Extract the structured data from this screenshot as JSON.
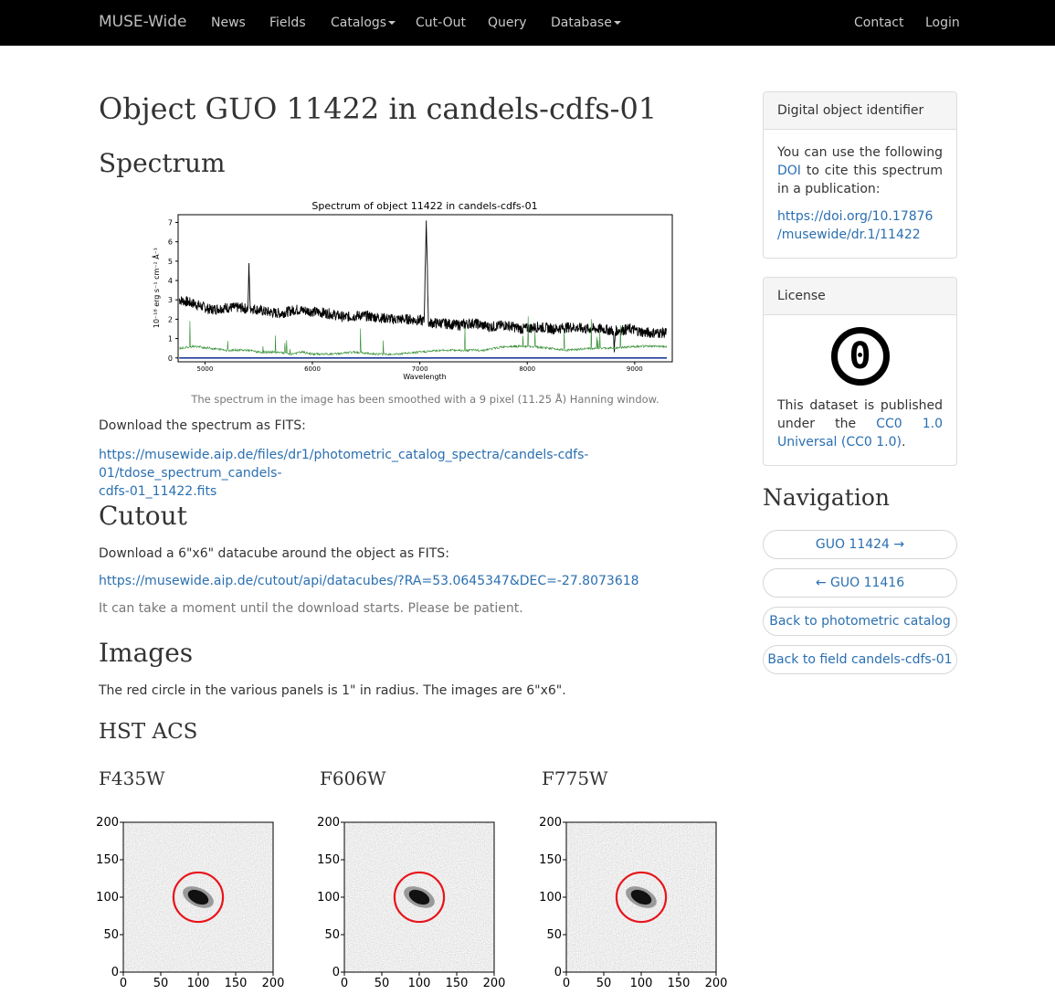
{
  "navbar": {
    "brand": "MUSE-Wide",
    "items": [
      "News",
      "Fields",
      "Catalogs",
      "Cut-Out",
      "Query",
      "Database"
    ],
    "right_items": [
      "Contact",
      "Login"
    ]
  },
  "page": {
    "title": "Object GUO 11422 in candels-cdfs-01",
    "spectrum_heading": "Spectrum",
    "spectrum_caption": "The spectrum in the image has been smoothed with a 9 pixel (11.25 Å) Hanning window.",
    "download_spectrum_text": "Download the spectrum as FITS:",
    "spectrum_link_line1": "https://musewide.aip.de/files/dr1/photometric_catalog_spectra/candels-cdfs-01/tdose_spectrum_candels-",
    "spectrum_link_line2": "cdfs-01_11422.fits",
    "cutout_heading": "Cutout",
    "cutout_text": "Download a 6\"x6\" datacube around the object as FITS:",
    "cutout_link": "https://musewide.aip.de/cutout/api/datacubes/?RA=53.0645347&DEC=-27.8073618",
    "cutout_note": "It can take a moment until the download starts. Please be patient.",
    "images_heading": "Images",
    "images_text": "The red circle in the various panels is 1\" in radius. The images are 6\"x6\".",
    "hst_heading": "HST ACS",
    "filters": [
      "F435W",
      "F606W",
      "F775W"
    ]
  },
  "sidebar": {
    "doi_heading": "Digital object identifier",
    "doi_text_before": "You can use the following",
    "doi_link_label": "DOI",
    "doi_text_after": "to cite this spectrum in a publication:",
    "doi_url_line1": "https://doi.org/10.17876",
    "doi_url_line2": "/musewide/dr.1/11422",
    "license_heading": "License",
    "license_symbol": "0",
    "license_text_before": "This dataset is published under the",
    "license_link": "CC0 1.0 Universal (CC0 1.0)",
    "license_text_after": ".",
    "navigation_heading": "Navigation",
    "nav_buttons": [
      "GUO 11424 →",
      "← GUO 11416",
      "Back to photometric catalog",
      "Back to field candels-cdfs-01"
    ]
  },
  "chart_data": [
    {
      "type": "line",
      "title": "Spectrum of object 11422 in candels-cdfs-01",
      "xlabel": "Wavelength",
      "ylabel": "10⁻¹⁸ erg s⁻¹ cm⁻² Å⁻¹",
      "xlim": [
        4750,
        9350
      ],
      "ylim": [
        -0.2,
        7.4
      ],
      "xticks": [
        5000,
        6000,
        7000,
        8000,
        9000
      ],
      "yticks": [
        0,
        1,
        2,
        3,
        4,
        5,
        6,
        7
      ],
      "series": [
        {
          "color": "#000000",
          "x": [
            4760,
            4900,
            5050,
            5200,
            5350,
            5400,
            5410,
            5420,
            5550,
            5700,
            5850,
            6000,
            6150,
            6300,
            6450,
            6600,
            6750,
            6900,
            7040,
            7060,
            7080,
            7200,
            7350,
            7500,
            7650,
            7800,
            7950,
            8100,
            8250,
            8400,
            8550,
            8700,
            8800,
            8810,
            8820,
            8950,
            9100,
            9300
          ],
          "y": [
            3.0,
            2.8,
            2.5,
            2.6,
            2.6,
            2.5,
            4.9,
            2.6,
            2.4,
            2.3,
            2.5,
            2.4,
            2.3,
            2.1,
            2.2,
            2.1,
            2.0,
            2.0,
            1.9,
            7.1,
            1.8,
            1.8,
            1.7,
            1.8,
            1.6,
            1.7,
            1.5,
            1.6,
            1.5,
            1.6,
            1.5,
            1.5,
            1.4,
            0.3,
            1.4,
            1.5,
            1.3,
            1.3
          ]
        },
        {
          "color": "#2e8b2e",
          "x": [
            4760,
            4900,
            5050,
            5200,
            5400,
            5500,
            5600,
            5700,
            5800,
            5900,
            6000,
            6200,
            6400,
            6600,
            6800,
            7000,
            7200,
            7400,
            7600,
            7800,
            8000,
            8200,
            8400,
            8600,
            8800,
            9000,
            9300
          ],
          "y": [
            0.5,
            0.6,
            0.5,
            0.4,
            0.4,
            0.3,
            0.3,
            0.3,
            0.2,
            0.3,
            0.2,
            0.2,
            0.3,
            0.2,
            0.2,
            0.3,
            0.4,
            0.4,
            0.4,
            0.6,
            0.6,
            0.5,
            0.4,
            0.5,
            0.5,
            0.6,
            0.6
          ]
        },
        {
          "color": "#1f3a9a",
          "x": [
            4760,
            9300
          ],
          "y": [
            0.0,
            0.0
          ]
        }
      ]
    },
    {
      "type": "heatmap",
      "title": "F435W",
      "xlim": [
        0,
        200
      ],
      "ylim": [
        0,
        200
      ],
      "xticks": [
        0,
        50,
        100,
        150,
        200
      ],
      "yticks": [
        0,
        50,
        100,
        150,
        200
      ],
      "circle": {
        "cx": 100,
        "cy": 100,
        "r": 33
      }
    },
    {
      "type": "heatmap",
      "title": "F606W",
      "xlim": [
        0,
        200
      ],
      "ylim": [
        0,
        200
      ],
      "xticks": [
        0,
        50,
        100,
        150,
        200
      ],
      "yticks": [
        0,
        50,
        100,
        150,
        200
      ],
      "circle": {
        "cx": 100,
        "cy": 100,
        "r": 33
      }
    },
    {
      "type": "heatmap",
      "title": "F775W",
      "xlim": [
        0,
        200
      ],
      "ylim": [
        0,
        200
      ],
      "xticks": [
        0,
        50,
        100,
        150,
        200
      ],
      "yticks": [
        0,
        50,
        100,
        150,
        200
      ],
      "circle": {
        "cx": 100,
        "cy": 100,
        "r": 33
      }
    }
  ]
}
